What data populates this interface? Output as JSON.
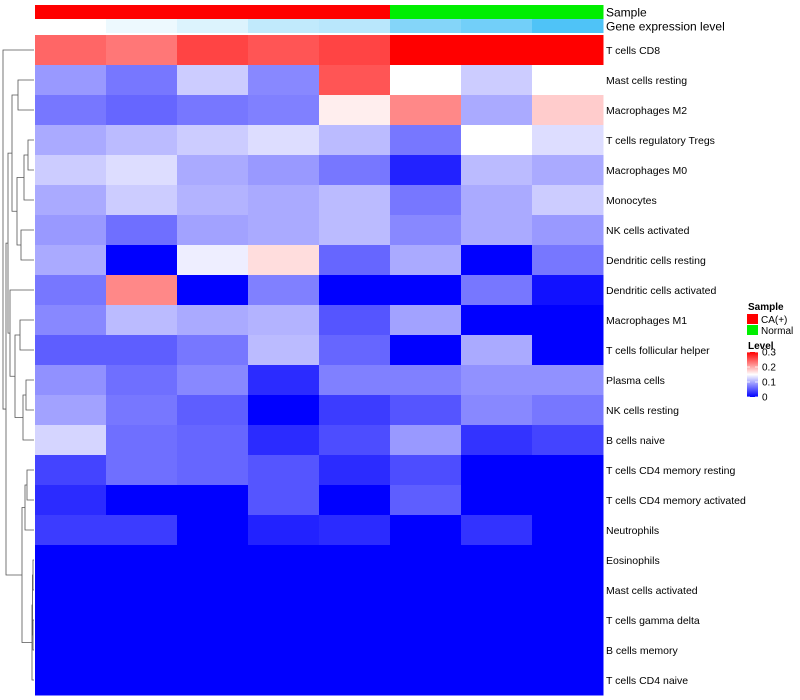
{
  "chart_data": {
    "type": "heatmap",
    "annotation_rows": [
      "Sample",
      "Gene expression level"
    ],
    "samples": [
      "CA(+)",
      "CA(+)",
      "CA(+)",
      "CA(+)",
      "CA(+)",
      "Normal",
      "Normal",
      "Normal"
    ],
    "gene_expression_level": [
      0.0,
      0.1,
      0.2,
      0.35,
      0.4,
      0.7,
      0.8,
      1.0
    ],
    "rows": [
      "T cells CD8",
      "Mast cells resting",
      "Macrophages M2",
      "T cells regulatory  Tregs",
      "Macrophages M0",
      "Monocytes",
      "NK cells activated",
      "Dendritic cells resting",
      "Dendritic cells activated",
      "Macrophages M1",
      "T cells follicular helper",
      "Plasma cells",
      "NK cells resting",
      "B cells naive",
      "T cells CD4 memory resting",
      "T cells CD4 memory activated",
      "Neutrophils",
      "Eosinophils",
      "Mast cells activated",
      "T cells gamma delta",
      "B cells memory",
      "T cells CD4 naive"
    ],
    "values": [
      [
        0.24,
        0.23,
        0.26,
        0.25,
        0.26,
        0.3,
        0.3,
        0.3
      ],
      [
        0.09,
        0.07,
        0.12,
        0.08,
        0.25,
        0.15,
        0.12,
        0.15
      ],
      [
        0.07,
        0.06,
        0.07,
        0.075,
        0.16,
        0.22,
        0.1,
        0.18
      ],
      [
        0.1,
        0.11,
        0.12,
        0.13,
        0.11,
        0.07,
        0.15,
        0.13
      ],
      [
        0.12,
        0.13,
        0.1,
        0.09,
        0.07,
        0.02,
        0.11,
        0.1
      ],
      [
        0.1,
        0.12,
        0.105,
        0.1,
        0.11,
        0.07,
        0.1,
        0.12
      ],
      [
        0.09,
        0.065,
        0.095,
        0.1,
        0.11,
        0.08,
        0.1,
        0.09
      ],
      [
        0.1,
        0.0,
        0.14,
        0.17,
        0.06,
        0.1,
        0.0,
        0.07
      ],
      [
        0.07,
        0.22,
        0.0,
        0.075,
        0.0,
        0.0,
        0.07,
        0.01
      ],
      [
        0.08,
        0.11,
        0.1,
        0.105,
        0.05,
        0.095,
        0.0,
        0.0
      ],
      [
        0.055,
        0.055,
        0.07,
        0.11,
        0.06,
        0.0,
        0.1,
        0.0
      ],
      [
        0.085,
        0.065,
        0.08,
        0.025,
        0.075,
        0.075,
        0.085,
        0.085
      ],
      [
        0.095,
        0.07,
        0.055,
        0.0,
        0.035,
        0.05,
        0.08,
        0.07
      ],
      [
        0.125,
        0.065,
        0.06,
        0.025,
        0.045,
        0.09,
        0.03,
        0.04
      ],
      [
        0.04,
        0.065,
        0.06,
        0.05,
        0.025,
        0.045,
        0.0,
        0.0
      ],
      [
        0.025,
        0.0,
        0.0,
        0.05,
        0.0,
        0.055,
        0.0,
        0.0
      ],
      [
        0.035,
        0.035,
        0.0,
        0.02,
        0.025,
        0.0,
        0.03,
        0.0
      ],
      [
        0.0,
        0.0,
        0.0,
        0.0,
        0.0,
        0.0,
        0.0,
        0.0
      ],
      [
        0.0,
        0.0,
        0.0,
        0.0,
        0.0,
        0.0,
        0.0,
        0.0
      ],
      [
        0.0,
        0.0,
        0.0,
        0.0,
        0.0,
        0.0,
        0.0,
        0.0
      ],
      [
        0.0,
        0.0,
        0.0,
        0.0,
        0.0,
        0.0,
        0.0,
        0.0
      ],
      [
        0.0,
        0.0,
        0.0,
        0.0,
        0.0,
        0.0,
        0.0,
        0.0
      ]
    ],
    "color_scale": {
      "min": 0,
      "mid": 0.15,
      "max": 0.3,
      "low": "#0000FF",
      "midColor": "#FFFFFF",
      "high": "#FF0000"
    },
    "annotation_colors": {
      "Sample": {
        "CA(+)": "#FF0000",
        "Normal": "#00EE00"
      },
      "gene_expression_low": "#FFFFFF",
      "gene_expression_high": "#4FC3F7"
    },
    "legend": {
      "sample_title": "Sample",
      "sample_entries": [
        "CA(+)",
        "Normal"
      ],
      "level_title": "Level",
      "level_ticks": [
        "0.3",
        "0.2",
        "0.1",
        "0"
      ],
      "level_tick_values": [
        0.3,
        0.2,
        0.1,
        0
      ],
      "placement": "right"
    },
    "row_dendrogram": true
  }
}
